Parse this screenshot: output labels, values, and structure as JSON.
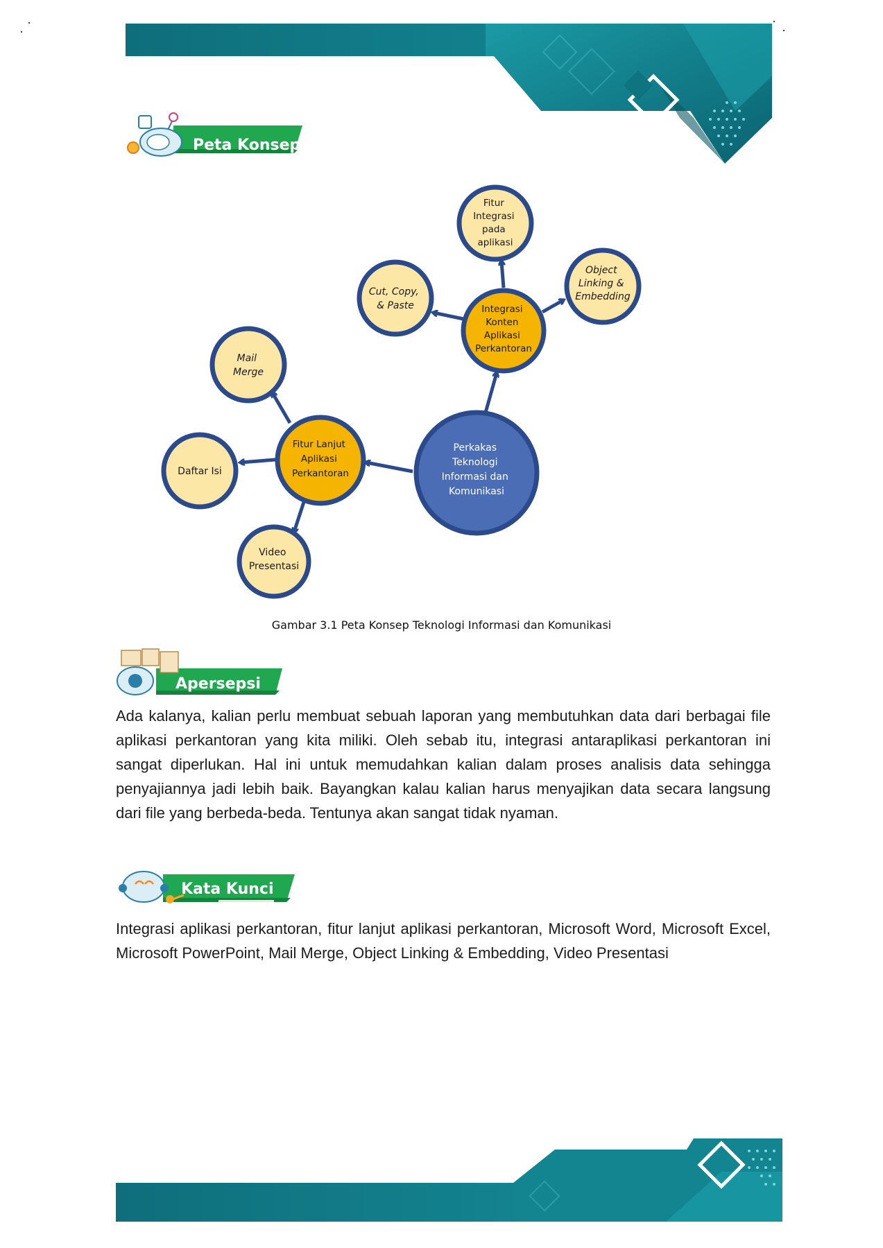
{
  "sections": {
    "concept_map": {
      "label": "Peta Konsep"
    },
    "apperception": {
      "label": "Apersepsi"
    },
    "keywords": {
      "label": "Kata Kunci"
    }
  },
  "concept_map": {
    "center": {
      "lines": [
        "Perkakas",
        "Teknologi",
        "Informasi dan",
        "Komunikasi"
      ]
    },
    "branch_left": {
      "lines": [
        "Fitur Lanjut",
        "Aplikasi",
        "Perkantoran"
      ]
    },
    "branch_top": {
      "lines": [
        "Integrasi",
        "Konten",
        "Aplikasi",
        "Perkantoran"
      ]
    },
    "leaves": [
      {
        "id": "mail-merge",
        "lines": [
          "Mail",
          "Merge"
        ],
        "italic": true
      },
      {
        "id": "daftar-isi",
        "lines": [
          "Daftar Isi"
        ],
        "italic": false
      },
      {
        "id": "video-presentasi",
        "lines": [
          "Video",
          "Presentasi"
        ],
        "italic": false
      },
      {
        "id": "cut-copy-paste",
        "lines": [
          "Cut, Copy,",
          "& Paste"
        ],
        "italic": true
      },
      {
        "id": "fitur-integrasi",
        "lines": [
          "Fitur",
          "Integrasi",
          "pada",
          "aplikasi"
        ],
        "italic": false
      },
      {
        "id": "object-linking",
        "lines": [
          "Object",
          "Linking &",
          "Embedding"
        ],
        "italic": true
      }
    ],
    "colors": {
      "outline": "#2b4a8c",
      "center_fill": "#4a6db5",
      "branch_fill": "#f5b400",
      "leaf_fill": "#fde7a6"
    }
  },
  "figure_caption": "Gambar 3.1 Peta Konsep Teknologi Informasi dan Komunikasi",
  "apperception_text": "Ada kalanya, kalian perlu membuat sebuah laporan yang membutuhkan data dari berbagai file aplikasi perkantoran yang kita miliki. Oleh sebab itu, integrasi antaraplikasi perkantoran ini sangat diperlukan. Hal ini untuk memudahkan kalian dalam proses analisis data sehingga penyajiannya jadi lebih baik. Bayangkan kalau kalian harus menyajikan data secara langsung dari file yang berbeda-beda. Tentunya akan sangat tidak nyaman.",
  "keywords_text": "Integrasi aplikasi perkantoran, fitur lanjut aplikasi perkantoran, Microsoft Word, Microsoft Excel, Microsoft PowerPoint, Mail Merge, Object Linking & Embedding, Video Presentasi",
  "theme": {
    "teal_dark": "#0e6f7c",
    "teal": "#138a96",
    "green": "#1fa84f"
  }
}
